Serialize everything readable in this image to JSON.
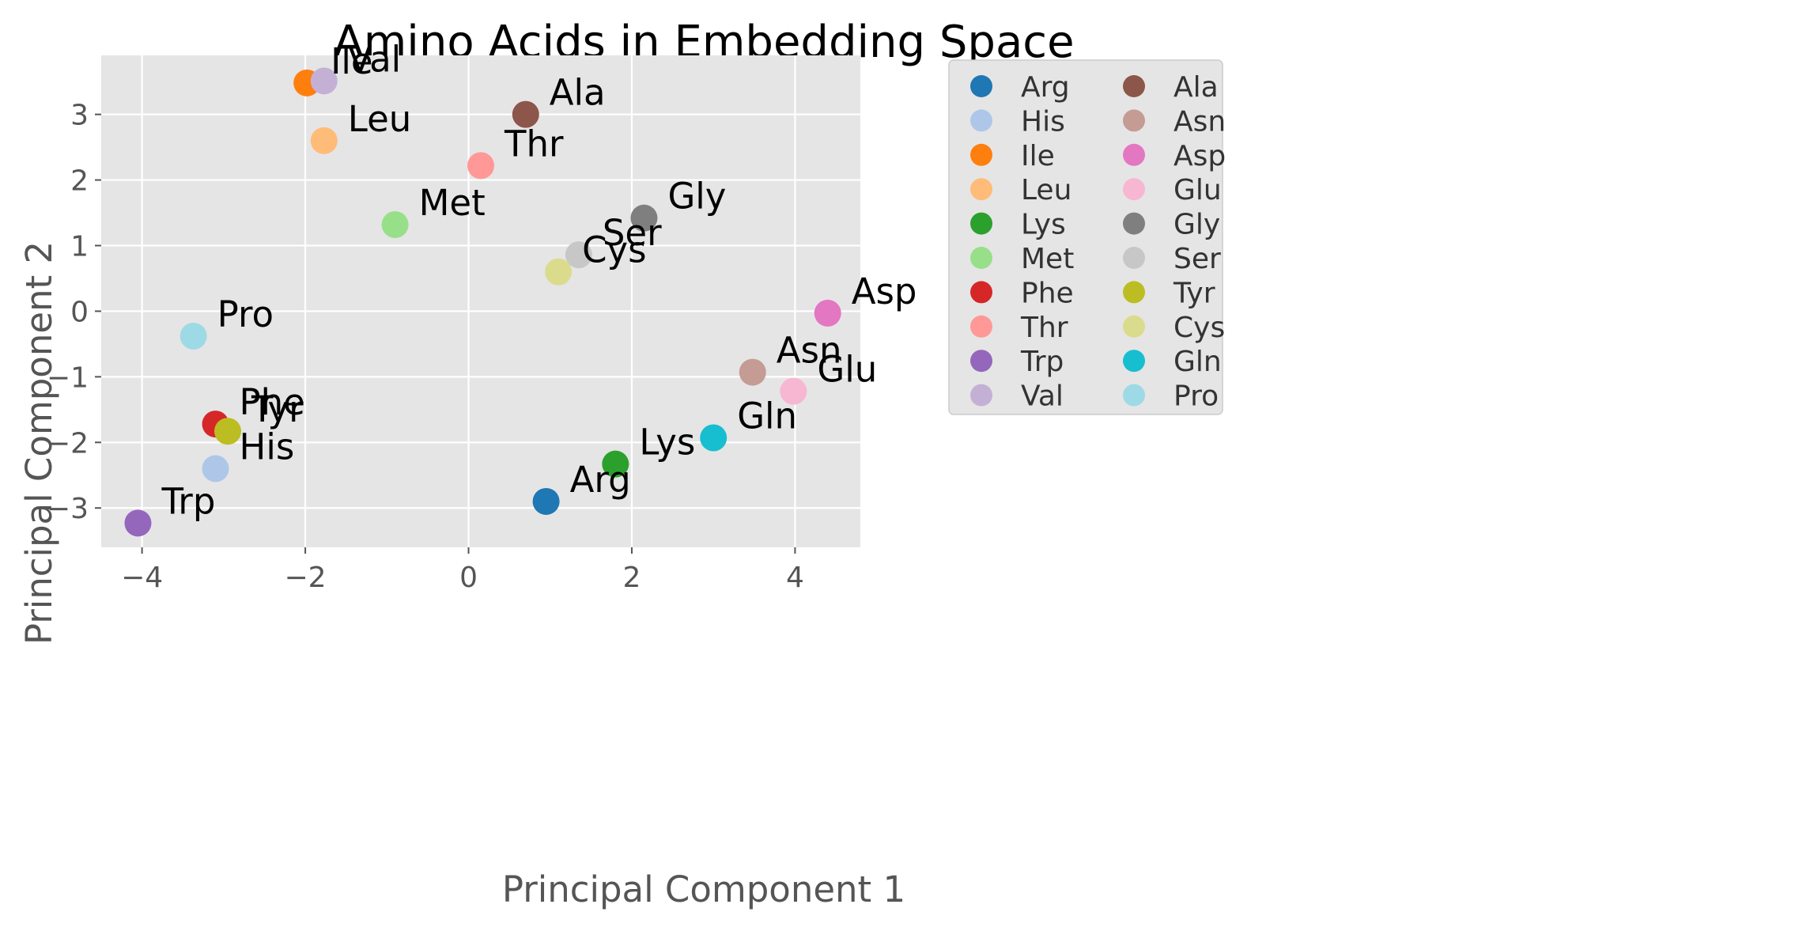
{
  "chart_data": {
    "type": "scatter",
    "title": "Amino Acids in Embedding Space",
    "xlabel": "Principal Component 1",
    "ylabel": "Principal Component 2",
    "xlim": [
      -4.5,
      4.8
    ],
    "ylim": [
      -3.6,
      3.9
    ],
    "xticks": [
      -4,
      -2,
      0,
      2,
      4
    ],
    "yticks": [
      -3,
      -2,
      -1,
      0,
      1,
      2,
      3
    ],
    "xtick_labels": [
      "−4",
      "−2",
      "0",
      "2",
      "4"
    ],
    "ytick_labels": [
      "−3",
      "−2",
      "−1",
      "0",
      "1",
      "2",
      "3"
    ],
    "grid": true,
    "legend_position": "outside-right",
    "legend_columns": 2,
    "series": [
      {
        "name": "Arg",
        "color": "#1f77b4",
        "x": 0.95,
        "y": -2.9
      },
      {
        "name": "His",
        "color": "#aec7e8",
        "x": -3.1,
        "y": -2.4
      },
      {
        "name": "Ile",
        "color": "#ff7f0e",
        "x": -1.98,
        "y": 3.48
      },
      {
        "name": "Leu",
        "color": "#ffbb78",
        "x": -1.77,
        "y": 2.6
      },
      {
        "name": "Lys",
        "color": "#2ca02c",
        "x": 1.8,
        "y": -2.33
      },
      {
        "name": "Met",
        "color": "#98df8a",
        "x": -0.9,
        "y": 1.32
      },
      {
        "name": "Phe",
        "color": "#d62728",
        "x": -3.1,
        "y": -1.72
      },
      {
        "name": "Thr",
        "color": "#ff9896",
        "x": 0.15,
        "y": 2.22
      },
      {
        "name": "Trp",
        "color": "#9467bd",
        "x": -4.05,
        "y": -3.23
      },
      {
        "name": "Val",
        "color": "#c5b0d5",
        "x": -1.77,
        "y": 3.51
      },
      {
        "name": "Ala",
        "color": "#8c564b",
        "x": 0.7,
        "y": 3.0
      },
      {
        "name": "Asn",
        "color": "#c49c94",
        "x": 3.48,
        "y": -0.93
      },
      {
        "name": "Asp",
        "color": "#e377c2",
        "x": 4.4,
        "y": -0.03
      },
      {
        "name": "Glu",
        "color": "#f7b6d2",
        "x": 3.98,
        "y": -1.22
      },
      {
        "name": "Gly",
        "color": "#7f7f7f",
        "x": 2.15,
        "y": 1.42
      },
      {
        "name": "Ser",
        "color": "#c7c7c7",
        "x": 1.35,
        "y": 0.86
      },
      {
        "name": "Tyr",
        "color": "#bcbd22",
        "x": -2.95,
        "y": -1.83
      },
      {
        "name": "Cys",
        "color": "#dbdb8d",
        "x": 1.1,
        "y": 0.6
      },
      {
        "name": "Gln",
        "color": "#17becf",
        "x": 3.0,
        "y": -1.93
      },
      {
        "name": "Pro",
        "color": "#9edae5",
        "x": -3.37,
        "y": -0.38
      }
    ]
  }
}
